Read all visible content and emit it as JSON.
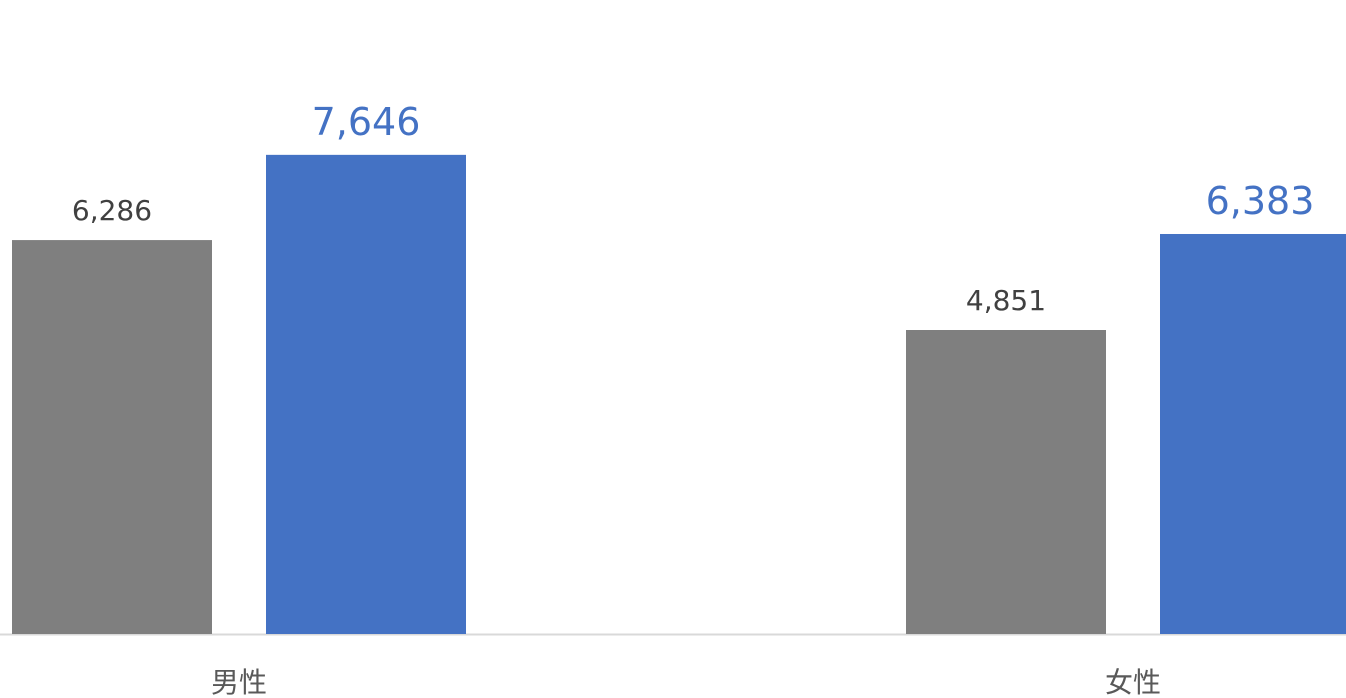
{
  "chart_data": {
    "type": "bar",
    "categories": [
      "男性",
      "女性"
    ],
    "series": [
      {
        "values": [
          6286,
          4851
        ],
        "color": "#7f7f7f",
        "label_color": "#404040"
      },
      {
        "values": [
          7646,
          6383
        ],
        "color": "#4472c4",
        "label_color": "#4472c4"
      }
    ],
    "value_labels": [
      [
        "6,286",
        "4,851"
      ],
      [
        "7,646",
        "6,383"
      ]
    ],
    "ylim": [
      0,
      9000
    ],
    "grid": false,
    "legend": "none",
    "axis_line_color": "#d9d9d9"
  }
}
